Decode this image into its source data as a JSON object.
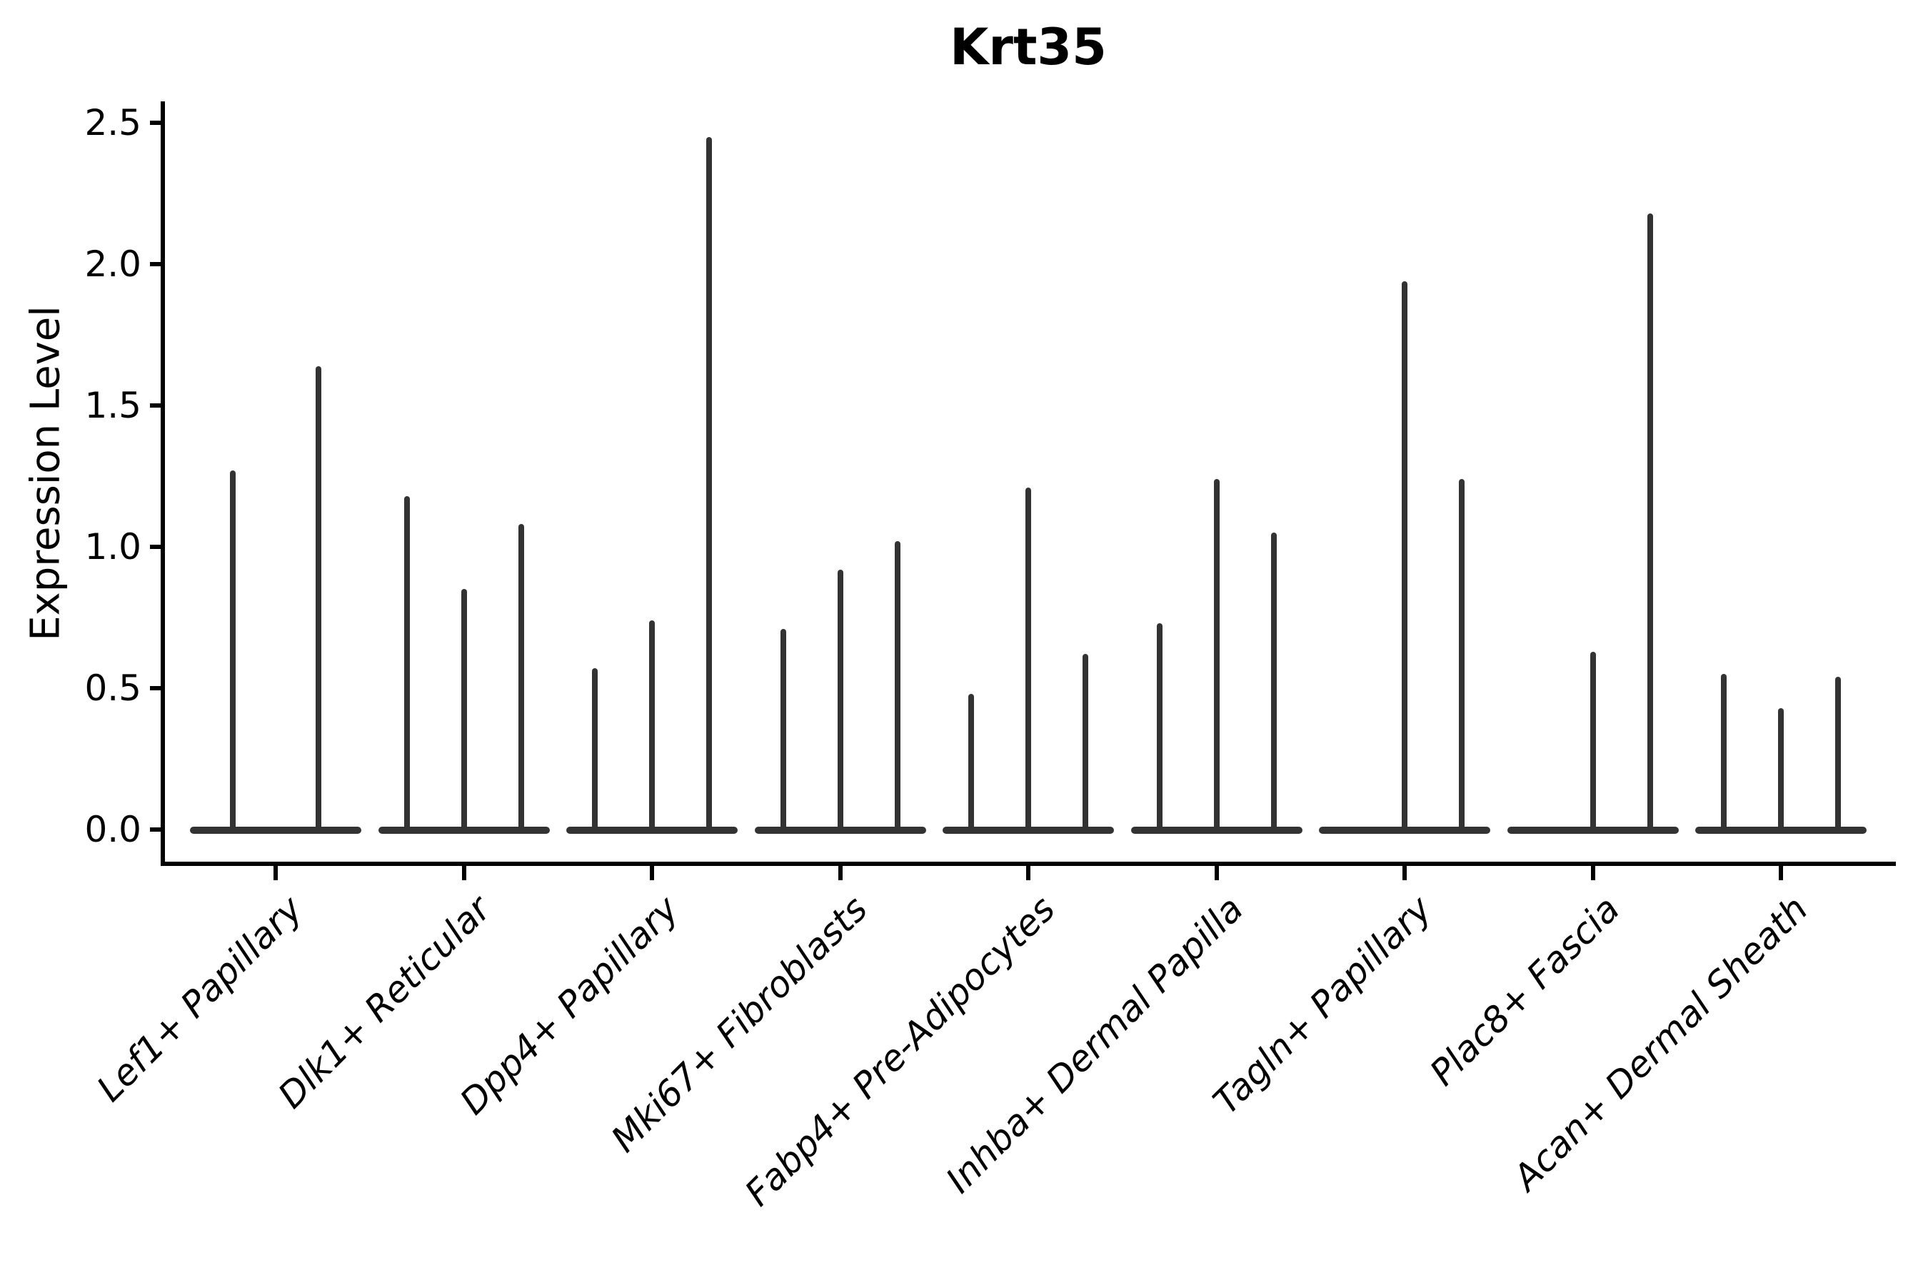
{
  "title": "Krt35",
  "y_axis": {
    "label": "Expression Level",
    "tick_labels": [
      "0.0",
      "0.5",
      "1.0",
      "1.5",
      "2.0",
      "2.5"
    ]
  },
  "colors": {
    "ink": "#000000",
    "violin": "#333333"
  },
  "chart_data": {
    "type": "violin",
    "title": "Krt35",
    "xlabel": "",
    "ylabel": "Expression Level",
    "ylim": [
      0,
      2.5
    ],
    "yticks": [
      0.0,
      0.5,
      1.0,
      1.5,
      2.0,
      2.5
    ],
    "grid": false,
    "legend": false,
    "description": "Seurat-style stacked violin plot of Krt35 expression; each cluster shows 2-3 extremely thin violins (split groups) rendered as a flat base at 0 with a narrow spike up to the max expression value. Spike value 0 means the violin is flat (no spike).",
    "categories": [
      "Lef1+ Papillary",
      "Dlk1+ Reticular",
      "Dpp4+ Papillary",
      "Mki67+ Fibroblasts",
      "Fabp4+ Pre-Adipocytes",
      "Inhba+ Dermal Papilla",
      "Tagln+ Papillary",
      "Plac8+ Fascia",
      "Acan+ Dermal Sheath"
    ],
    "groups": [
      {
        "label": "Lef1+ Papillary",
        "violin_max_values": [
          1.27,
          1.64
        ]
      },
      {
        "label": "Dlk1+ Reticular",
        "violin_max_values": [
          1.18,
          0.85,
          1.08
        ]
      },
      {
        "label": "Dpp4+ Papillary",
        "violin_max_values": [
          0.57,
          0.74,
          2.45
        ]
      },
      {
        "label": "Mki67+ Fibroblasts",
        "violin_max_values": [
          0.71,
          0.92,
          1.02
        ]
      },
      {
        "label": "Fabp4+ Pre-Adipocytes",
        "violin_max_values": [
          0.48,
          1.21,
          0.62
        ]
      },
      {
        "label": "Inhba+ Dermal Papilla",
        "violin_max_values": [
          0.73,
          1.24,
          1.05
        ]
      },
      {
        "label": "Tagln+ Papillary",
        "violin_max_values": [
          0.0,
          1.94,
          1.24
        ]
      },
      {
        "label": "Plac8+ Fascia",
        "violin_max_values": [
          0.0,
          0.63,
          2.18
        ]
      },
      {
        "label": "Acan+ Dermal Sheath",
        "violin_max_values": [
          0.55,
          0.43,
          0.54
        ]
      }
    ]
  }
}
